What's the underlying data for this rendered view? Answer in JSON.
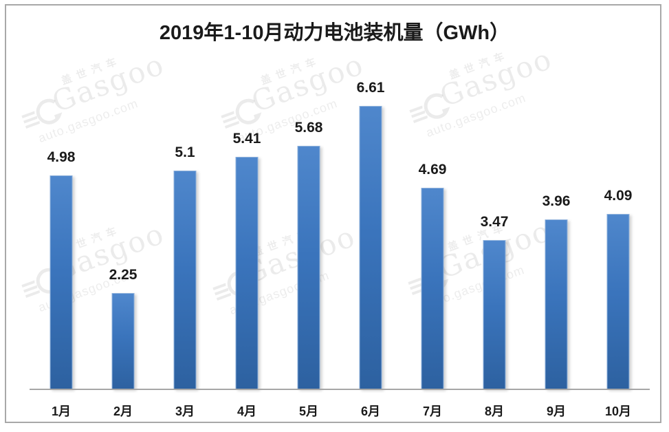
{
  "title": "2019年1-10月动力电池装机量（GWh）",
  "watermark": {
    "brand_cn": "盖世汽车",
    "brand": "Gasgoo",
    "url": "auto.gasgoo.com"
  },
  "chart_data": {
    "type": "bar",
    "title": "2019年1-10月动力电池装机量（GWh）",
    "categories": [
      "1月",
      "2月",
      "3月",
      "4月",
      "5月",
      "6月",
      "7月",
      "8月",
      "9月",
      "10月"
    ],
    "values": [
      4.98,
      2.25,
      5.1,
      5.41,
      5.68,
      6.61,
      4.69,
      3.47,
      3.96,
      4.09
    ],
    "value_labels": [
      "4.98",
      "2.25",
      "5.1",
      "5.41",
      "5.68",
      "6.61",
      "4.69",
      "3.47",
      "3.96",
      "4.09"
    ],
    "xlabel": "",
    "ylabel": "",
    "ylim": [
      0,
      7
    ],
    "grid": false,
    "legend": null,
    "y_axis_visible": false,
    "bar_color_top": "#4f87cc",
    "bar_color_bottom": "#2d61a0",
    "axis_color": "#a6a6a6",
    "label_color": "#1a1a1a"
  }
}
